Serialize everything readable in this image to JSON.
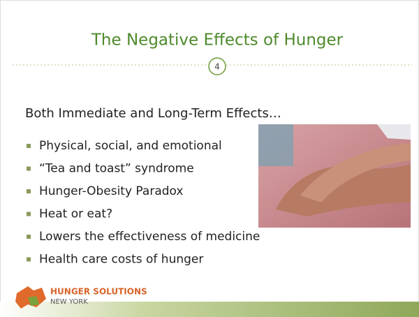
{
  "slide": {
    "title": "The Negative Effects of Hunger",
    "page_number": "4",
    "heading": "Both Immediate and Long-Term Effects…",
    "bullets": [
      "Physical, social, and emotional",
      "“Tea and toast” syndrome",
      "Hunger-Obesity Paradox",
      "Heat or eat?",
      "Lowers the effectiveness of medicine",
      "Health care costs of hunger"
    ],
    "logo": {
      "name": "HUNGER SOLUTIONS",
      "location": "NEW YORK"
    }
  }
}
